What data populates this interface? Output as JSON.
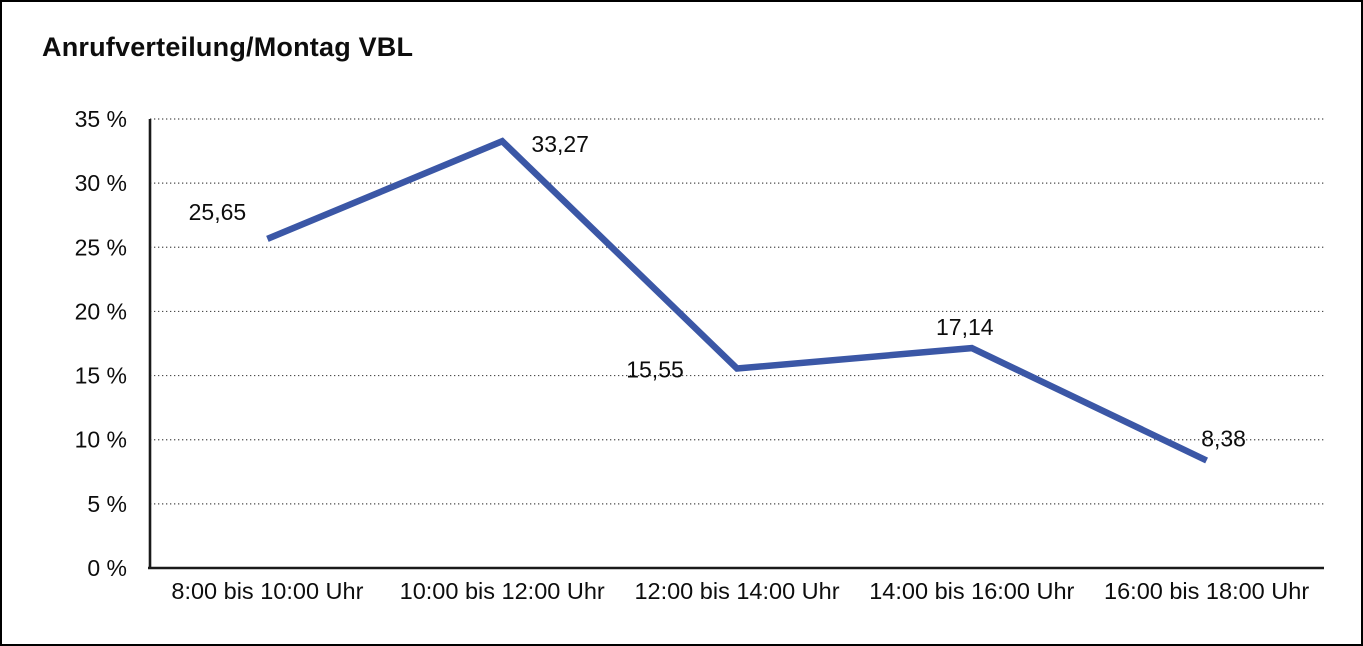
{
  "title": "Anrufverteilung/Montag VBL",
  "chart_data": {
    "type": "line",
    "title": "Anrufverteilung/Montag VBL",
    "categories": [
      "8:00 bis 10:00 Uhr",
      "10:00 bis 12:00 Uhr",
      "12:00 bis 14:00 Uhr",
      "14:00 bis 16:00 Uhr",
      "16:00 bis 18:00 Uhr"
    ],
    "values": [
      25.65,
      33.27,
      15.55,
      17.14,
      8.38
    ],
    "value_labels": [
      "25,65",
      "33,27",
      "15,55",
      "17,14",
      "8,38"
    ],
    "ylim": [
      0,
      35
    ],
    "yticks": [
      {
        "value": 0,
        "label": "0 %"
      },
      {
        "value": 5,
        "label": "5 %"
      },
      {
        "value": 10,
        "label": "10 %"
      },
      {
        "value": 15,
        "label": "15 %"
      },
      {
        "value": 20,
        "label": "20 %"
      },
      {
        "value": 25,
        "label": "25 %"
      },
      {
        "value": 30,
        "label": "30 %"
      },
      {
        "value": 35,
        "label": "35 %"
      }
    ],
    "grid": "horizontal-dotted",
    "legend": "none",
    "line_color": "#3B57A6",
    "axis_color": "#1a1a1a",
    "grid_color": "#4d4d4d",
    "text_color": "#0d0d0d"
  }
}
